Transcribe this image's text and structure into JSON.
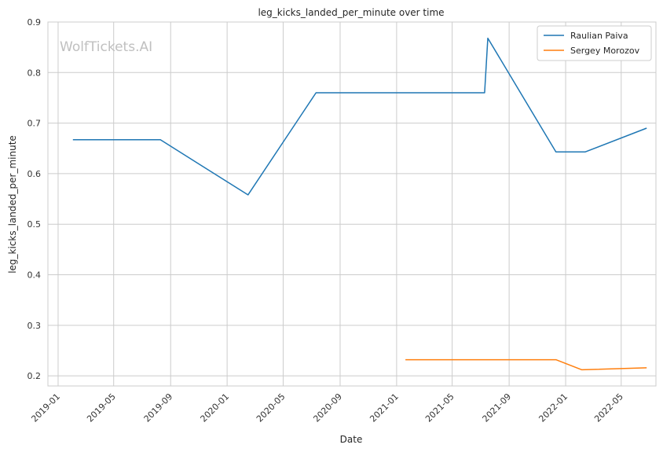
{
  "chart_data": {
    "type": "line",
    "title": "leg_kicks_landed_per_minute over time",
    "xlabel": "Date",
    "ylabel": "leg_kicks_landed_per_minute",
    "watermark": "WolfTickets.AI",
    "xlim": [
      "2018-12-10",
      "2022-07-15"
    ],
    "ylim": [
      0.18,
      0.9
    ],
    "yticks": [
      0.2,
      0.3,
      0.4,
      0.5,
      0.6,
      0.7,
      0.8,
      0.9
    ],
    "xticks": [
      "2019-01",
      "2019-05",
      "2019-09",
      "2020-01",
      "2020-05",
      "2020-09",
      "2021-01",
      "2021-05",
      "2021-09",
      "2022-01",
      "2022-05"
    ],
    "grid": true,
    "legend": "top-right",
    "series": [
      {
        "name": "Raulian Paiva",
        "color": "#1f77b4",
        "points": [
          {
            "x": "2019-02-02",
            "y": 0.667
          },
          {
            "x": "2019-08-10",
            "y": 0.667
          },
          {
            "x": "2020-02-15",
            "y": 0.558
          },
          {
            "x": "2020-07-11",
            "y": 0.76
          },
          {
            "x": "2021-07-10",
            "y": 0.76
          },
          {
            "x": "2021-07-17",
            "y": 0.868
          },
          {
            "x": "2021-12-11",
            "y": 0.643
          },
          {
            "x": "2022-02-12",
            "y": 0.643
          },
          {
            "x": "2022-06-25",
            "y": 0.69
          }
        ]
      },
      {
        "name": "Sergey Morozov",
        "color": "#ff7f0e",
        "points": [
          {
            "x": "2021-01-20",
            "y": 0.232
          },
          {
            "x": "2021-12-11",
            "y": 0.232
          },
          {
            "x": "2022-02-05",
            "y": 0.212
          },
          {
            "x": "2022-06-25",
            "y": 0.216
          }
        ]
      }
    ]
  }
}
